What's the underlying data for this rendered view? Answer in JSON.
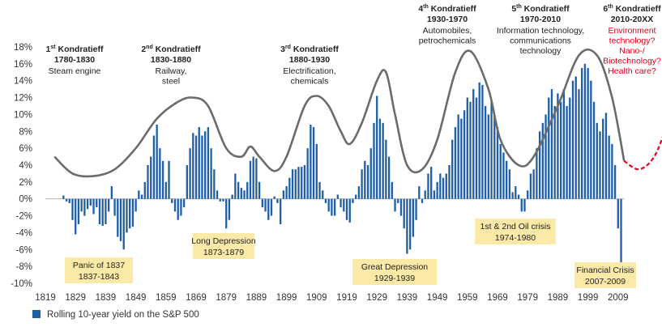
{
  "chart_data": {
    "type": "bar",
    "ylim": [
      -10,
      18
    ],
    "xlim": [
      1819,
      2019
    ],
    "y_ticks": [
      "18%",
      "16%",
      "14%",
      "12%",
      "10%",
      "8%",
      "6%",
      "4%",
      "2%",
      "0%",
      "-2%",
      "-4%",
      "-6%",
      "-8%",
      "-10%"
    ],
    "x_ticks": [
      "1819",
      "1829",
      "1839",
      "1849",
      "1859",
      "1869",
      "1879",
      "1889",
      "1899",
      "1909",
      "1919",
      "1929",
      "1939",
      "1949",
      "1959",
      "1969",
      "1979",
      "1989",
      "1999",
      "2009"
    ],
    "colors": {
      "bars": "#1f5fa8",
      "wave": "#6b6b6b",
      "future_wave": "#e3001b",
      "crisis_box": "#fbe9a8"
    },
    "series": [
      {
        "name": "Rolling 10-year yield on the S&P 500",
        "bar_points": [
          [
            1825,
            0.4
          ],
          [
            1826,
            -0.3
          ],
          [
            1827,
            -0.5
          ],
          [
            1828,
            -2.5
          ],
          [
            1829,
            -4.2
          ],
          [
            1830,
            -3.0
          ],
          [
            1831,
            -1.5
          ],
          [
            1832,
            -2.0
          ],
          [
            1833,
            -1.2
          ],
          [
            1834,
            -0.8
          ],
          [
            1835,
            -1.8
          ],
          [
            1836,
            -1.0
          ],
          [
            1837,
            -3.0
          ],
          [
            1838,
            -3.2
          ],
          [
            1839,
            -3.0
          ],
          [
            1840,
            -1.5
          ],
          [
            1841,
            1.5
          ],
          [
            1842,
            -2.0
          ],
          [
            1843,
            -4.5
          ],
          [
            1844,
            -5.0
          ],
          [
            1845,
            -6.0
          ],
          [
            1846,
            -4.0
          ],
          [
            1847,
            -3.5
          ],
          [
            1848,
            -3.3
          ],
          [
            1849,
            -1.5
          ],
          [
            1850,
            1.0
          ],
          [
            1851,
            0.5
          ],
          [
            1852,
            2.0
          ],
          [
            1853,
            4.0
          ],
          [
            1854,
            5.0
          ],
          [
            1855,
            7.5
          ],
          [
            1856,
            8.8
          ],
          [
            1857,
            6.0
          ],
          [
            1858,
            4.5
          ],
          [
            1859,
            2.0
          ],
          [
            1860,
            4.5
          ],
          [
            1861,
            -0.5
          ],
          [
            1862,
            -1.5
          ],
          [
            1863,
            -2.5
          ],
          [
            1864,
            -2.0
          ],
          [
            1865,
            -1.0
          ],
          [
            1866,
            4.0
          ],
          [
            1867,
            6.0
          ],
          [
            1868,
            7.8
          ],
          [
            1869,
            7.5
          ],
          [
            1870,
            8.5
          ],
          [
            1871,
            7.5
          ],
          [
            1872,
            8.0
          ],
          [
            1873,
            8.5
          ],
          [
            1874,
            6.0
          ],
          [
            1875,
            3.5
          ],
          [
            1876,
            1.0
          ],
          [
            1877,
            -0.3
          ],
          [
            1878,
            -0.3
          ],
          [
            1879,
            -3.5
          ],
          [
            1880,
            -2.5
          ],
          [
            1881,
            0.5
          ],
          [
            1882,
            3.0
          ],
          [
            1883,
            2.0
          ],
          [
            1884,
            1.3
          ],
          [
            1885,
            1.0
          ],
          [
            1886,
            2.0
          ],
          [
            1887,
            4.5
          ],
          [
            1888,
            5.0
          ],
          [
            1889,
            4.8
          ],
          [
            1890,
            2.0
          ],
          [
            1891,
            -1.0
          ],
          [
            1892,
            -1.5
          ],
          [
            1893,
            -2.5
          ],
          [
            1894,
            -2.0
          ],
          [
            1895,
            0.3
          ],
          [
            1896,
            -0.5
          ],
          [
            1897,
            -3.0
          ],
          [
            1898,
            1.0
          ],
          [
            1899,
            1.5
          ],
          [
            1900,
            2.5
          ],
          [
            1901,
            3.5
          ],
          [
            1902,
            3.5
          ],
          [
            1903,
            3.8
          ],
          [
            1904,
            3.8
          ],
          [
            1905,
            4.0
          ],
          [
            1906,
            6.0
          ],
          [
            1907,
            8.8
          ],
          [
            1908,
            8.5
          ],
          [
            1909,
            6.5
          ],
          [
            1910,
            2.0
          ],
          [
            1911,
            1.0
          ],
          [
            1912,
            -0.5
          ],
          [
            1913,
            -1.5
          ],
          [
            1914,
            -2.0
          ],
          [
            1915,
            -2.0
          ],
          [
            1916,
            0.5
          ],
          [
            1917,
            -1.0
          ],
          [
            1918,
            -1.5
          ],
          [
            1919,
            -2.5
          ],
          [
            1920,
            -2.8
          ],
          [
            1921,
            -0.5
          ],
          [
            1922,
            0.5
          ],
          [
            1923,
            1.5
          ],
          [
            1924,
            3.5
          ],
          [
            1925,
            4.5
          ],
          [
            1926,
            4.0
          ],
          [
            1927,
            6.0
          ],
          [
            1928,
            9.0
          ],
          [
            1929,
            12.2
          ],
          [
            1930,
            9.5
          ],
          [
            1931,
            9.0
          ],
          [
            1932,
            7.0
          ],
          [
            1933,
            5.0
          ],
          [
            1934,
            2.0
          ],
          [
            1935,
            -1.5
          ],
          [
            1936,
            -0.5
          ],
          [
            1937,
            -2.0
          ],
          [
            1938,
            -3.5
          ],
          [
            1939,
            -6.5
          ],
          [
            1940,
            -6.0
          ],
          [
            1941,
            -4.5
          ],
          [
            1942,
            -2.5
          ],
          [
            1943,
            1.5
          ],
          [
            1944,
            -0.5
          ],
          [
            1945,
            1.0
          ],
          [
            1946,
            3.0
          ],
          [
            1947,
            3.8
          ],
          [
            1948,
            1.0
          ],
          [
            1949,
            2.0
          ],
          [
            1950,
            3.0
          ],
          [
            1951,
            2.5
          ],
          [
            1952,
            3.0
          ],
          [
            1953,
            4.0
          ],
          [
            1954,
            7.0
          ],
          [
            1955,
            8.5
          ],
          [
            1956,
            10.0
          ],
          [
            1957,
            9.5
          ],
          [
            1958,
            10.5
          ],
          [
            1959,
            12.0
          ],
          [
            1960,
            11.5
          ],
          [
            1961,
            13.0
          ],
          [
            1962,
            12.0
          ],
          [
            1963,
            13.8
          ],
          [
            1964,
            13.5
          ],
          [
            1965,
            11.0
          ],
          [
            1966,
            10.0
          ],
          [
            1967,
            11.5
          ],
          [
            1968,
            10.0
          ],
          [
            1969,
            8.5
          ],
          [
            1970,
            6.5
          ],
          [
            1971,
            5.5
          ],
          [
            1972,
            4.5
          ],
          [
            1973,
            3.5
          ],
          [
            1974,
            0.8
          ],
          [
            1975,
            1.5
          ],
          [
            1976,
            0.5
          ],
          [
            1977,
            -1.5
          ],
          [
            1978,
            -1.5
          ],
          [
            1979,
            1.0
          ],
          [
            1980,
            3.0
          ],
          [
            1981,
            3.5
          ],
          [
            1982,
            6.0
          ],
          [
            1983,
            8.0
          ],
          [
            1984,
            9.0
          ],
          [
            1985,
            10.0
          ],
          [
            1986,
            12.0
          ],
          [
            1987,
            13.0
          ],
          [
            1988,
            11.0
          ],
          [
            1989,
            12.5
          ],
          [
            1990,
            11.5
          ],
          [
            1991,
            13.0
          ],
          [
            1992,
            11.0
          ],
          [
            1993,
            12.0
          ],
          [
            1994,
            14.0
          ],
          [
            1995,
            14.5
          ],
          [
            1996,
            13.0
          ],
          [
            1997,
            15.5
          ],
          [
            1998,
            16.0
          ],
          [
            1999,
            15.5
          ],
          [
            2000,
            14.0
          ],
          [
            2001,
            11.5
          ],
          [
            2002,
            9.0
          ],
          [
            2003,
            8.0
          ],
          [
            2004,
            9.5
          ],
          [
            2005,
            10.2
          ],
          [
            2006,
            7.5
          ],
          [
            2007,
            6.5
          ],
          [
            2008,
            4.0
          ],
          [
            2009,
            -3.5
          ],
          [
            2010,
            -7.5
          ]
        ]
      }
    ],
    "waves": [
      {
        "name": "Kondratieff wave",
        "points": [
          [
            1822,
            5
          ],
          [
            1828,
            3
          ],
          [
            1835,
            2.7
          ],
          [
            1842,
            3.5
          ],
          [
            1849,
            6
          ],
          [
            1856,
            9.5
          ],
          [
            1863,
            11.5
          ],
          [
            1868,
            12
          ],
          [
            1873,
            11
          ],
          [
            1879,
            6
          ],
          [
            1884,
            5
          ],
          [
            1887,
            6.2
          ],
          [
            1890,
            5
          ],
          [
            1895,
            3.3
          ],
          [
            1899,
            5
          ],
          [
            1905,
            11
          ],
          [
            1909,
            12.2
          ],
          [
            1913,
            11
          ],
          [
            1917,
            8
          ],
          [
            1920,
            6.5
          ],
          [
            1924,
            9
          ],
          [
            1929,
            14
          ],
          [
            1932,
            15
          ],
          [
            1935,
            10
          ],
          [
            1939,
            4
          ],
          [
            1944,
            3.5
          ],
          [
            1949,
            7
          ],
          [
            1955,
            15
          ],
          [
            1960,
            17.5
          ],
          [
            1966,
            13
          ],
          [
            1970,
            7
          ],
          [
            1976,
            4
          ],
          [
            1981,
            5
          ],
          [
            1989,
            11
          ],
          [
            1996,
            17
          ],
          [
            2002,
            17
          ],
          [
            2007,
            12
          ],
          [
            2011,
            4.5
          ]
        ]
      },
      {
        "name": "Projected wave",
        "points": [
          [
            2011,
            4.5
          ],
          [
            2016,
            3.5
          ],
          [
            2021,
            5
          ],
          [
            2025,
            8.5
          ]
        ]
      }
    ],
    "annotations": {
      "waves": [
        {
          "ordinal": "1",
          "sup": "st",
          "title_rest": " Kondratieff",
          "years": "1780-1830",
          "lines": [
            "Steam engine"
          ],
          "color": "dark"
        },
        {
          "ordinal": "2",
          "sup": "nd",
          "title_rest": " Kondratieff",
          "years": "1830-1880",
          "lines": [
            "Railway,",
            "steel"
          ],
          "color": "dark"
        },
        {
          "ordinal": "3",
          "sup": "rd",
          "title_rest": " Kondratieff",
          "years": "1880-1930",
          "lines": [
            "Electrification,",
            "chemicals"
          ],
          "color": "dark"
        },
        {
          "ordinal": "4",
          "sup": "th",
          "title_rest": " Kondratieff",
          "years": "1930-1970",
          "lines": [
            "Automobiles,",
            "petrochemicals"
          ],
          "color": "dark"
        },
        {
          "ordinal": "5",
          "sup": "th",
          "title_rest": " Kondratieff",
          "years": "1970-2010",
          "lines": [
            "Information technology,",
            "communications",
            "technology"
          ],
          "color": "dark"
        },
        {
          "ordinal": "6",
          "sup": "th",
          "title_rest": " Kondratieff",
          "years": "2010-20XX",
          "lines": [
            "Environment",
            "technology?",
            "Nano-/",
            "Biotechnology?",
            "Health care?"
          ],
          "color": "red"
        }
      ],
      "crises": [
        {
          "line1": "Panic of 1837",
          "line2": "1837-1843"
        },
        {
          "line1": "Long Depression",
          "line2": "1873-1879"
        },
        {
          "line1": "Great Depression",
          "line2": "1929-1939"
        },
        {
          "line1": "1st & 2nd Oil crisis",
          "line2": "1974-1980"
        },
        {
          "line1": "Financial Crisis",
          "line2": "2007-2009"
        }
      ]
    },
    "legend": {
      "label": "Rolling 10-year yield on the S&P 500",
      "placement": "bottom-left"
    },
    "grid": false
  }
}
